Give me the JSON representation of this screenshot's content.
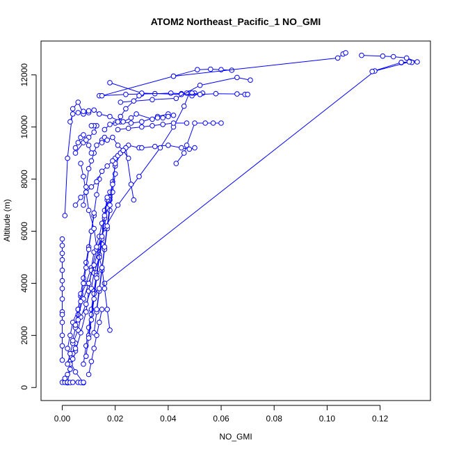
{
  "chart_data": {
    "type": "line",
    "title": "ATOM2 Northeast_Pacific_1 NO_GMI",
    "xlabel": "NO_GMI",
    "ylabel": "Altitude (m)",
    "xlim": [
      -0.008,
      0.139
    ],
    "ylim": [
      -500,
      13300
    ],
    "xticks": [
      0.0,
      0.02,
      0.04,
      0.06,
      0.08,
      0.1,
      0.12
    ],
    "xtick_labels": [
      "0.00",
      "0.02",
      "0.04",
      "0.06",
      "0.08",
      "0.10",
      "0.12"
    ],
    "yticks": [
      0,
      2000,
      4000,
      6000,
      8000,
      10000,
      12000
    ],
    "ytick_labels": [
      "0",
      "2000",
      "4000",
      "6000",
      "8000",
      "10000",
      "12000"
    ],
    "grid": false,
    "color": "#0000ff",
    "marker": "open-circle",
    "series": [
      {
        "x": [
          0.008,
          0.005,
          0.003,
          0.002,
          0.003,
          0.004,
          0.006,
          0.007,
          0.009,
          0.011,
          0.012,
          0.014,
          0.015,
          0.016,
          0.018,
          0.019,
          0.02,
          0.022,
          0.025,
          0.029
        ],
        "y": [
          180,
          600,
          1000,
          1500,
          2000,
          2500,
          3000,
          3500,
          4000,
          4600,
          5200,
          5800,
          6300,
          6800,
          7300,
          7900,
          8500,
          9000,
          9300,
          9200
        ]
      },
      {
        "x": [
          0.03,
          0.035,
          0.04,
          0.045,
          0.048,
          0.05
        ],
        "y": [
          9200,
          9250,
          9300,
          9200,
          9150,
          9200
        ]
      },
      {
        "x": [
          0.002,
          0.003,
          0.005,
          0.007,
          0.009,
          0.01,
          0.011,
          0.013,
          0.016,
          0.021,
          0.029,
          0.037,
          0.042,
          0.046,
          0.048,
          0.049,
          0.05
        ],
        "y": [
          200,
          700,
          1400,
          2100,
          2900,
          3700,
          4500,
          5300,
          6100,
          7000,
          8100,
          9200,
          10000,
          10800,
          11300,
          11200,
          11300
        ]
      },
      {
        "x": [
          0.014,
          0.024,
          0.03,
          0.035,
          0.041,
          0.045,
          0.047,
          0.049,
          0.052,
          0.053
        ],
        "y": [
          11200,
          11250,
          11270,
          11280,
          11300,
          11280,
          11300,
          11300,
          11250,
          11300
        ]
      },
      {
        "x": [
          0.042,
          0.051,
          0.056,
          0.06,
          0.064
        ],
        "y": [
          11950,
          12200,
          12220,
          12200,
          12180
        ]
      },
      {
        "x": [
          0.015,
          0.042,
          0.104,
          0.106,
          0.107
        ],
        "y": [
          11200,
          11950,
          12650,
          12800,
          12850
        ]
      },
      {
        "x": [
          0.113,
          0.121,
          0.125,
          0.13,
          0.134,
          0.132,
          0.128
        ],
        "y": [
          12750,
          12720,
          12700,
          12650,
          12500,
          12480,
          12470
        ]
      },
      {
        "x": [
          0.016,
          0.118,
          0.131,
          0.128,
          0.117
        ],
        "y": [
          4000,
          12150,
          12500,
          12480,
          12130
        ]
      },
      {
        "x": [
          0.018,
          0.03,
          0.045,
          0.052,
          0.058,
          0.066,
          0.069,
          0.07
        ],
        "y": [
          11700,
          11300,
          11250,
          11250,
          11280,
          11270,
          11250,
          11250
        ]
      },
      {
        "x": [
          0.022,
          0.034,
          0.043,
          0.052,
          0.066,
          0.071
        ],
        "y": [
          10950,
          11050,
          11100,
          11600,
          11900,
          11800
        ]
      },
      {
        "x": [
          0.001,
          0.002,
          0.004,
          0.006,
          0.008,
          0.01
        ],
        "y": [
          6600,
          8800,
          10700,
          10950,
          10500,
          10550
        ]
      },
      {
        "x": [
          0.003,
          0.004,
          0.006,
          0.008,
          0.01,
          0.012,
          0.014,
          0.018,
          0.022,
          0.026,
          0.03,
          0.036,
          0.04
        ],
        "y": [
          10200,
          10500,
          10550,
          10600,
          10620,
          10650,
          10500,
          10400,
          10200,
          10150,
          10200,
          10400,
          10500
        ]
      },
      {
        "x": [
          0.005,
          0.008,
          0.01,
          0.012,
          0.013,
          0.012,
          0.011
        ],
        "y": [
          9000,
          9400,
          9600,
          9800,
          10050,
          10050,
          10050
        ]
      },
      {
        "x": [
          0.02,
          0.023,
          0.026,
          0.028,
          0.034,
          0.036,
          0.038,
          0.04,
          0.042
        ],
        "y": [
          10150,
          10200,
          10350,
          10500,
          10300,
          10350,
          10350,
          10400,
          10450
        ]
      },
      {
        "x": [
          0.043,
          0.046,
          0.047,
          0.05,
          0.054,
          0.057,
          0.06
        ],
        "y": [
          8600,
          9000,
          9300,
          10150,
          10150,
          10150,
          10150
        ]
      },
      {
        "x": [
          0.021,
          0.025,
          0.03,
          0.034,
          0.038,
          0.042,
          0.047
        ],
        "y": [
          9900,
          9950,
          10000,
          10050,
          10100,
          10150,
          10150
        ]
      },
      {
        "x": [
          0.016,
          0.018,
          0.021,
          0.022,
          0.024,
          0.027,
          0.029
        ],
        "y": [
          9900,
          10100,
          10200,
          10400,
          10700,
          11000,
          11200
        ]
      },
      {
        "x": [
          0.0,
          0.0,
          0.0,
          0.0,
          0.0,
          0.0,
          0.0,
          0.0,
          0.0,
          0.0,
          0.0,
          0.0,
          0.0,
          0.0
        ],
        "y": [
          5700,
          5450,
          5150,
          4900,
          4500,
          4100,
          3800,
          3400,
          2900,
          2800,
          2500,
          2000,
          1600,
          1050
        ]
      },
      {
        "x": [
          0.0,
          0.001,
          0.001,
          0.002,
          0.002,
          0.003,
          0.004,
          0.006,
          0.007,
          0.008
        ],
        "y": [
          200,
          220,
          200,
          180,
          200,
          190,
          200,
          200,
          190,
          200
        ]
      },
      {
        "x": [
          0.001,
          0.002,
          0.003,
          0.003,
          0.004,
          0.004,
          0.005,
          0.005
        ],
        "y": [
          350,
          500,
          700,
          900,
          1100,
          1300,
          1500,
          1700
        ]
      },
      {
        "x": [
          0.002,
          0.003,
          0.004,
          0.006,
          0.007,
          0.009,
          0.011,
          0.012,
          0.014,
          0.015
        ],
        "y": [
          900,
          1300,
          1700,
          2200,
          2700,
          3200,
          3800,
          4400,
          5000,
          5500
        ]
      },
      {
        "x": [
          0.004,
          0.005,
          0.006,
          0.008,
          0.01,
          0.012,
          0.014,
          0.016,
          0.017,
          0.018
        ],
        "y": [
          1800,
          2300,
          2800,
          3400,
          4000,
          4700,
          5400,
          6200,
          6900,
          7200
        ]
      },
      {
        "x": [
          0.005,
          0.006,
          0.007,
          0.008,
          0.009,
          0.01,
          0.011,
          0.012
        ],
        "y": [
          2400,
          3000,
          3600,
          4200,
          4800,
          5400,
          6000,
          6600
        ]
      },
      {
        "x": [
          0.006,
          0.007,
          0.008,
          0.009,
          0.01,
          0.011,
          0.012,
          0.013,
          0.014
        ],
        "y": [
          2600,
          3300,
          4000,
          4600,
          5300,
          6000,
          6700,
          7400,
          8000
        ]
      },
      {
        "x": [
          0.008,
          0.009,
          0.01,
          0.011,
          0.012,
          0.013,
          0.014,
          0.015
        ],
        "y": [
          900,
          1600,
          2300,
          3000,
          3700,
          4400,
          5100,
          5800
        ]
      },
      {
        "x": [
          0.009,
          0.01,
          0.011,
          0.012,
          0.013,
          0.014,
          0.015,
          0.016,
          0.017
        ],
        "y": [
          1200,
          2000,
          2800,
          3600,
          4300,
          5000,
          5700,
          6500,
          7200
        ]
      },
      {
        "x": [
          0.01,
          0.011,
          0.012,
          0.013,
          0.014,
          0.015,
          0.016,
          0.017,
          0.018
        ],
        "y": [
          1900,
          2600,
          3400,
          4200,
          5000,
          5800,
          6600,
          7300,
          7500
        ]
      },
      {
        "x": [
          0.012,
          0.013,
          0.014,
          0.015,
          0.016,
          0.017,
          0.018,
          0.019,
          0.02
        ],
        "y": [
          2100,
          2900,
          3700,
          4500,
          5300,
          6100,
          6800,
          7500,
          8200
        ]
      },
      {
        "x": [
          0.013,
          0.014,
          0.015,
          0.016,
          0.017,
          0.018,
          0.019,
          0.02
        ],
        "y": [
          3000,
          3800,
          4600,
          5400,
          6200,
          7000,
          7800,
          8600
        ]
      },
      {
        "x": [
          0.018,
          0.017,
          0.016,
          0.015,
          0.013,
          0.012,
          0.01,
          0.009,
          0.008,
          0.007
        ],
        "y": [
          2200,
          3000,
          3800,
          4600,
          5400,
          6100,
          6800,
          7500,
          8100,
          8600
        ]
      },
      {
        "x": [
          0.02,
          0.021,
          0.022,
          0.023,
          0.024,
          0.026,
          0.027
        ],
        "y": [
          8800,
          8900,
          9000,
          9100,
          9200,
          7800,
          7200
        ]
      },
      {
        "x": [
          0.008,
          0.009,
          0.01,
          0.011,
          0.012,
          0.013,
          0.015,
          0.016
        ],
        "y": [
          7000,
          7700,
          8400,
          8700,
          9000,
          9300,
          9500,
          9600
        ]
      },
      {
        "x": [
          0.005,
          0.007,
          0.009,
          0.011,
          0.013,
          0.015,
          0.017,
          0.019
        ],
        "y": [
          7000,
          7300,
          7500,
          7700,
          7900,
          8300,
          8500,
          8700
        ]
      },
      {
        "x": [
          0.005,
          0.006,
          0.007,
          0.008,
          0.009,
          0.01,
          0.011
        ],
        "y": [
          9200,
          9400,
          9600,
          9700,
          9500,
          9300,
          9000
        ]
      },
      {
        "x": [
          0.015,
          0.017,
          0.019,
          0.021,
          0.023,
          0.025
        ],
        "y": [
          9400,
          9500,
          9600,
          9300,
          9100,
          8800
        ]
      },
      {
        "x": [
          0.01,
          0.011,
          0.012,
          0.013,
          0.014,
          0.015
        ],
        "y": [
          500,
          1000,
          1500,
          2000,
          2500,
          3000
        ]
      }
    ]
  }
}
